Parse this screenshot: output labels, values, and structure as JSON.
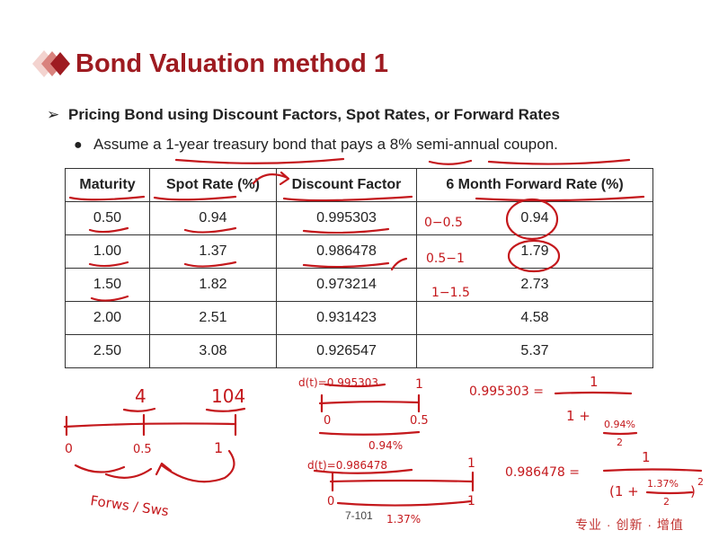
{
  "slide": {
    "title": "Bond Valuation method 1",
    "bullet_main": "Pricing Bond using Discount Factors, Spot Rates, or Forward Rates",
    "bullet_sub": "Assume a 1-year treasury bond that pays a 8% semi-annual coupon.",
    "page_number": "7-101",
    "footer_brand": "专业 · 创新 · 增值",
    "accent_color": "#9e1b21",
    "ink_color": "#c4181c"
  },
  "table": {
    "headers": [
      "Maturity",
      "Spot Rate (%)",
      "Discount Factor",
      "6 Month Forward Rate (%)"
    ],
    "rows": [
      [
        "0.50",
        "0.94",
        "0.995303",
        "0.94"
      ],
      [
        "1.00",
        "1.37",
        "0.986478",
        "1.79"
      ],
      [
        "1.50",
        "1.82",
        "0.973214",
        "2.73"
      ],
      [
        "2.00",
        "2.51",
        "0.931423",
        "4.58"
      ],
      [
        "2.50",
        "3.08",
        "0.926547",
        "5.37"
      ]
    ]
  },
  "annotations": {
    "fwd_0": "0−0.5",
    "fwd_1": "0.5−1",
    "fwd_2": "1−1.5",
    "coupon": "4",
    "face": "104",
    "t0": "0",
    "t05": "0.5",
    "t1": "1",
    "method": "Forws / Sws",
    "d1_label": "d(t)=0.995303",
    "d1_end": "1",
    "d1_t0": "0",
    "d1_t05": "0.5",
    "d1_rate": "0.94%",
    "d2_label": "d(t)=0.986478",
    "d2_end": "1",
    "d2_t0": "0",
    "d2_t1": "1",
    "d2_rate": "1.37%",
    "eq1_lhs": "0.995303 =",
    "eq1_num": "1",
    "eq1_den": "1 +",
    "eq1_frac_num": "0.94%",
    "eq1_frac_den": "2",
    "eq2_lhs": "0.986478 =",
    "eq2_num": "1",
    "eq2_den": "(1 +",
    "eq2_frac_num": "1.37%",
    "eq2_frac_den": "2",
    "eq2_close": ")",
    "eq2_exp": "2"
  }
}
